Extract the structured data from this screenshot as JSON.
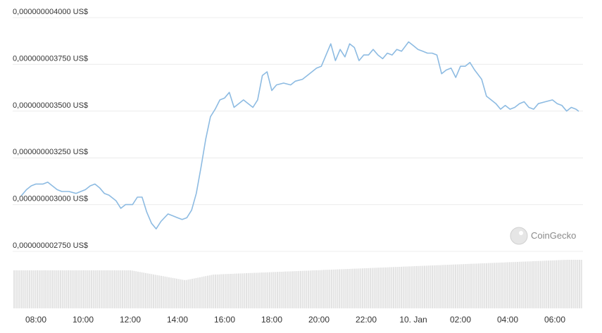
{
  "chart_data": {
    "type": "line",
    "title": "",
    "xlabel": "",
    "ylabel": "",
    "x_ticks": [
      "08:00",
      "10:00",
      "12:00",
      "14:00",
      "16:00",
      "18:00",
      "20:00",
      "22:00",
      "10. Jan",
      "02:00",
      "04:00",
      "06:00"
    ],
    "y_ticks": [
      "0,000000004000 US$",
      "0,000000003750 US$",
      "0,000000003500 US$",
      "0,000000003250 US$",
      "0,000000003000 US$",
      "0,000000002750 US$"
    ],
    "y_tick_values": [
      4e-09,
      3.75e-09,
      3.5e-09,
      3.25e-09,
      3e-09,
      2.75e-09
    ],
    "ylim": [
      2.75e-09,
      4e-09
    ],
    "x_range_hours": [
      7.4,
      31.0
    ],
    "grid": true,
    "line_color": "#8dbbe2",
    "volume_bar_color": "#e3e3e3",
    "watermark": "CoinGecko",
    "series": [
      {
        "values": [
          [
            7.4,
            3.05e-09
          ],
          [
            7.6,
            3.08e-09
          ],
          [
            7.8,
            3.1e-09
          ],
          [
            8.0,
            3.11e-09
          ],
          [
            8.3,
            3.11e-09
          ],
          [
            8.5,
            3.12e-09
          ],
          [
            8.7,
            3.1e-09
          ],
          [
            8.9,
            3.08e-09
          ],
          [
            9.1,
            3.07e-09
          ],
          [
            9.4,
            3.07e-09
          ],
          [
            9.7,
            3.06e-09
          ],
          [
            9.9,
            3.07e-09
          ],
          [
            10.1,
            3.08e-09
          ],
          [
            10.3,
            3.1e-09
          ],
          [
            10.5,
            3.11e-09
          ],
          [
            10.7,
            3.09e-09
          ],
          [
            10.9,
            3.06e-09
          ],
          [
            11.1,
            3.05e-09
          ],
          [
            11.4,
            3.02e-09
          ],
          [
            11.6,
            2.98e-09
          ],
          [
            11.8,
            3e-09
          ],
          [
            12.1,
            3e-09
          ],
          [
            12.3,
            3.04e-09
          ],
          [
            12.5,
            3.04e-09
          ],
          [
            12.7,
            2.96e-09
          ],
          [
            12.9,
            2.9e-09
          ],
          [
            13.1,
            2.87e-09
          ],
          [
            13.3,
            2.91e-09
          ],
          [
            13.6,
            2.95e-09
          ],
          [
            13.8,
            2.94e-09
          ],
          [
            14.0,
            2.93e-09
          ],
          [
            14.2,
            2.92e-09
          ],
          [
            14.4,
            2.93e-09
          ],
          [
            14.6,
            2.97e-09
          ],
          [
            14.8,
            3.06e-09
          ],
          [
            15.0,
            3.2e-09
          ],
          [
            15.2,
            3.35e-09
          ],
          [
            15.4,
            3.47e-09
          ],
          [
            15.6,
            3.51e-09
          ],
          [
            15.8,
            3.56e-09
          ],
          [
            16.0,
            3.57e-09
          ],
          [
            16.2,
            3.6e-09
          ],
          [
            16.4,
            3.52e-09
          ],
          [
            16.6,
            3.54e-09
          ],
          [
            16.8,
            3.56e-09
          ],
          [
            17.0,
            3.54e-09
          ],
          [
            17.2,
            3.52e-09
          ],
          [
            17.4,
            3.56e-09
          ],
          [
            17.6,
            3.69e-09
          ],
          [
            17.8,
            3.71e-09
          ],
          [
            18.0,
            3.61e-09
          ],
          [
            18.2,
            3.64e-09
          ],
          [
            18.5,
            3.65e-09
          ],
          [
            18.8,
            3.64e-09
          ],
          [
            19.0,
            3.66e-09
          ],
          [
            19.3,
            3.67e-09
          ],
          [
            19.6,
            3.7e-09
          ],
          [
            19.9,
            3.73e-09
          ],
          [
            20.1,
            3.74e-09
          ],
          [
            20.3,
            3.8e-09
          ],
          [
            20.5,
            3.86e-09
          ],
          [
            20.7,
            3.77e-09
          ],
          [
            20.9,
            3.83e-09
          ],
          [
            21.1,
            3.79e-09
          ],
          [
            21.3,
            3.86e-09
          ],
          [
            21.5,
            3.84e-09
          ],
          [
            21.7,
            3.77e-09
          ],
          [
            21.9,
            3.8e-09
          ],
          [
            22.1,
            3.8e-09
          ],
          [
            22.3,
            3.83e-09
          ],
          [
            22.5,
            3.8e-09
          ],
          [
            22.7,
            3.78e-09
          ],
          [
            22.9,
            3.81e-09
          ],
          [
            23.1,
            3.8e-09
          ],
          [
            23.3,
            3.83e-09
          ],
          [
            23.5,
            3.82e-09
          ],
          [
            23.8,
            3.87e-09
          ],
          [
            24.0,
            3.85e-09
          ],
          [
            24.2,
            3.83e-09
          ],
          [
            24.4,
            3.82e-09
          ],
          [
            24.6,
            3.81e-09
          ],
          [
            24.8,
            3.81e-09
          ],
          [
            25.0,
            3.8e-09
          ],
          [
            25.2,
            3.7e-09
          ],
          [
            25.4,
            3.72e-09
          ],
          [
            25.6,
            3.73e-09
          ],
          [
            25.8,
            3.68e-09
          ],
          [
            26.0,
            3.74e-09
          ],
          [
            26.2,
            3.74e-09
          ],
          [
            26.4,
            3.76e-09
          ],
          [
            26.6,
            3.72e-09
          ],
          [
            26.9,
            3.67e-09
          ],
          [
            27.1,
            3.58e-09
          ],
          [
            27.3,
            3.56e-09
          ],
          [
            27.5,
            3.54e-09
          ],
          [
            27.7,
            3.51e-09
          ],
          [
            27.9,
            3.53e-09
          ],
          [
            28.1,
            3.51e-09
          ],
          [
            28.3,
            3.52e-09
          ],
          [
            28.5,
            3.54e-09
          ],
          [
            28.7,
            3.55e-09
          ],
          [
            28.9,
            3.52e-09
          ],
          [
            29.1,
            3.51e-09
          ],
          [
            29.3,
            3.54e-09
          ],
          [
            29.6,
            3.55e-09
          ],
          [
            29.9,
            3.56e-09
          ],
          [
            30.1,
            3.54e-09
          ],
          [
            30.3,
            3.53e-09
          ],
          [
            30.5,
            3.5e-09
          ],
          [
            30.7,
            3.52e-09
          ],
          [
            30.9,
            3.51e-09
          ],
          [
            31.0,
            3.5e-09
          ]
        ]
      }
    ]
  }
}
